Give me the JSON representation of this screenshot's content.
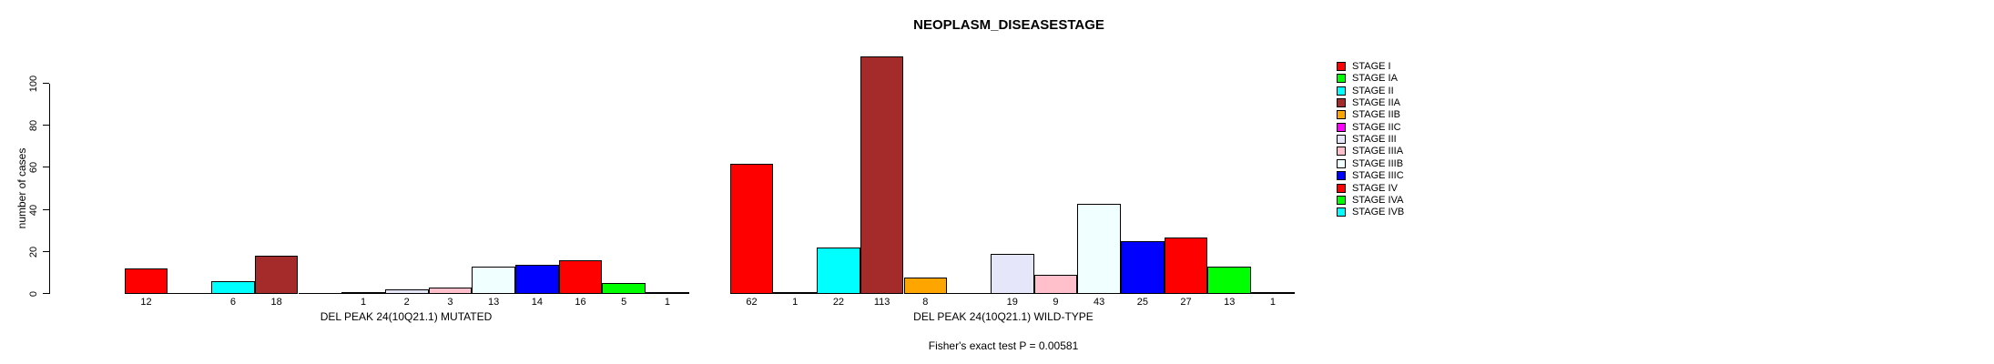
{
  "chart_data": {
    "type": "bar",
    "title": "NEOPLASM_DISEASESTAGE",
    "ylabel": "number of cases",
    "ylim": [
      0,
      113
    ],
    "yticks": [
      0,
      20,
      40,
      60,
      80,
      100
    ],
    "grid": false,
    "legend_position": "right",
    "categories": [
      "STAGE I",
      "STAGE IA",
      "STAGE II",
      "STAGE IIA",
      "STAGE IIB",
      "STAGE IIC",
      "STAGE III",
      "STAGE IIIA",
      "STAGE IIIB",
      "STAGE IIIC",
      "STAGE IV",
      "STAGE IVA",
      "STAGE IVB"
    ],
    "colors": [
      "#FF0000",
      "#00FF00",
      "#00FFFF",
      "#A52A2A",
      "#FFA500",
      "#FF00FF",
      "#E6E6FA",
      "#FFC0CB",
      "#F0FFFF",
      "#0000FF",
      "#FF0000",
      "#00FF00",
      "#00FFFF"
    ],
    "series": [
      {
        "name": "DEL PEAK 24(10Q21.1) MUTATED",
        "values": [
          12,
          0,
          6,
          18,
          0,
          1,
          2,
          3,
          13,
          14,
          16,
          5,
          1
        ]
      },
      {
        "name": "DEL PEAK 24(10Q21.1) WILD-TYPE",
        "values": [
          62,
          1,
          22,
          113,
          8,
          0,
          19,
          9,
          43,
          25,
          27,
          13,
          1
        ]
      }
    ],
    "bar_value_labels": {
      "mutated": [
        "12",
        "",
        "6",
        "18",
        "",
        "1",
        "2",
        "3",
        "13",
        "14",
        "16",
        "5",
        "1"
      ],
      "wild_type": [
        "62",
        "1",
        "22",
        "113",
        "8",
        "",
        "19",
        "9",
        "43",
        "25",
        "27",
        "13",
        "1"
      ]
    },
    "footnote": "Fisher's exact test P = 0.00581"
  }
}
